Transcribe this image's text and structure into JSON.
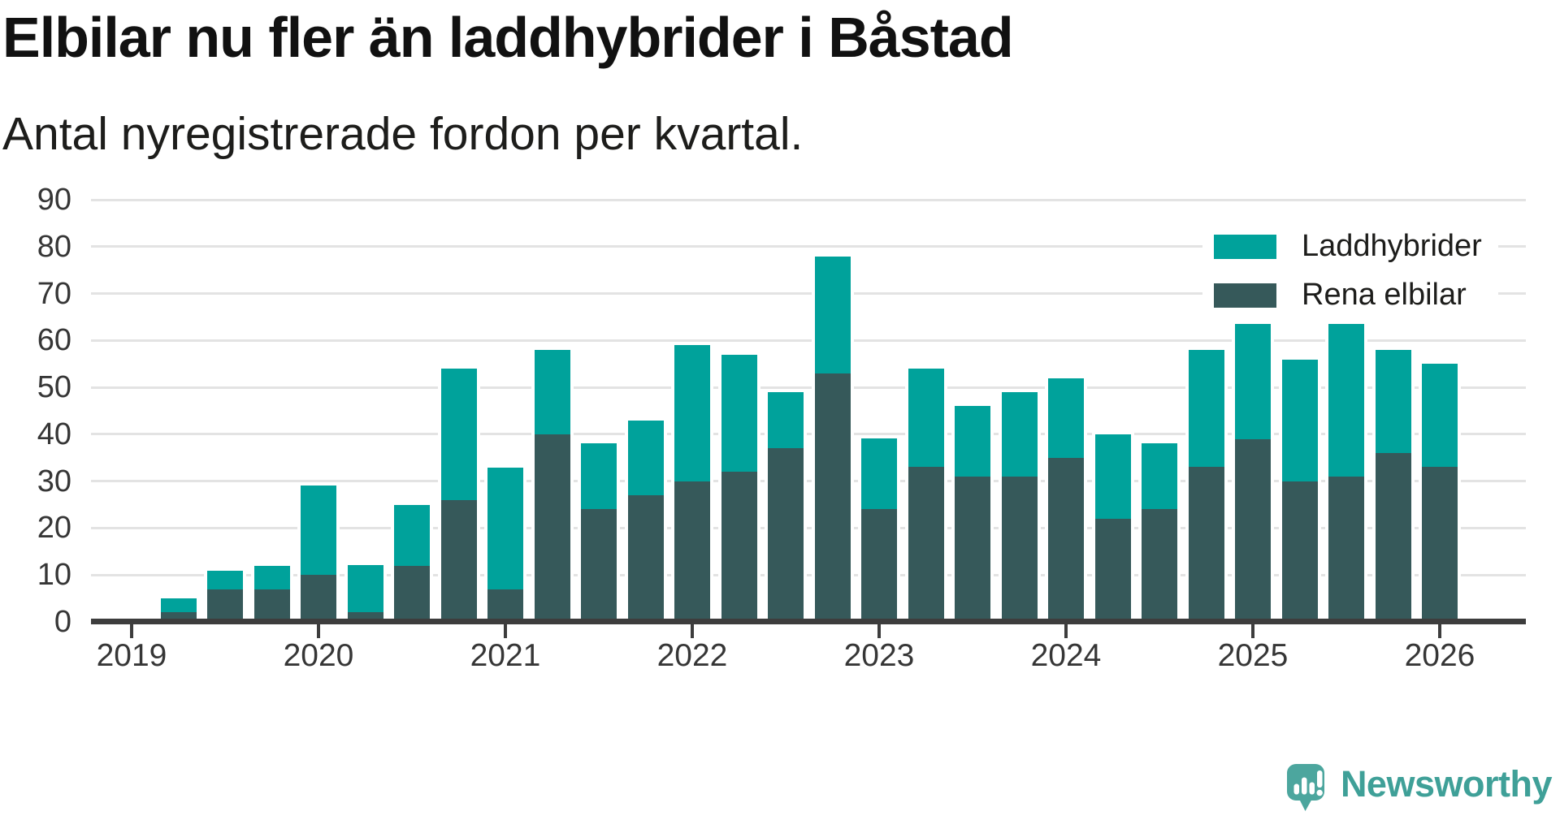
{
  "header": {
    "title": "Elbilar nu fler än laddhybrider i Båstad",
    "subtitle": "Antal nyregistrerade fordon per kvartal."
  },
  "legend": {
    "items": [
      {
        "label": "Laddhybrider",
        "color": "#00a29b"
      },
      {
        "label": "Rena elbilar",
        "color": "#36595a"
      }
    ]
  },
  "chart_data": {
    "type": "bar",
    "stacked": true,
    "title": "Elbilar nu fler än laddhybrider i Båstad",
    "subtitle": "Antal nyregistrerade fordon per kvartal.",
    "categories": [
      "2019 Q2",
      "2019 Q3",
      "2019 Q4",
      "2020 Q1",
      "2020 Q2",
      "2020 Q3",
      "2020 Q4",
      "2021 Q1",
      "2021 Q2",
      "2021 Q3",
      "2021 Q4",
      "2022 Q1",
      "2022 Q2",
      "2022 Q3",
      "2022 Q4",
      "2023 Q1",
      "2023 Q2",
      "2023 Q3",
      "2023 Q4",
      "2024 Q1",
      "2024 Q2",
      "2024 Q3",
      "2024 Q4",
      "2025 Q1",
      "2025 Q2",
      "2025 Q3",
      "2025 Q4",
      "2026 Q1"
    ],
    "series": [
      {
        "name": "Laddhybrider",
        "color": "#00a29b",
        "values": [
          3,
          4,
          5,
          19,
          10,
          13,
          28,
          26,
          18,
          14,
          16,
          29,
          25,
          12,
          25,
          15,
          21,
          15,
          18,
          17,
          18,
          14,
          25,
          25,
          26,
          33,
          22,
          22
        ]
      },
      {
        "name": "Rena elbilar",
        "color": "#36595a",
        "values": [
          2,
          7,
          7,
          10,
          2,
          12,
          26,
          7,
          40,
          24,
          27,
          30,
          32,
          37,
          53,
          24,
          33,
          31,
          31,
          35,
          22,
          24,
          33,
          39,
          30,
          31,
          36,
          33
        ]
      }
    ],
    "stack_bottom": "Rena elbilar",
    "totals": [
      5,
      11,
      12,
      29,
      12,
      25,
      54,
      33,
      58,
      38,
      43,
      59,
      57,
      49,
      78,
      39,
      54,
      46,
      49,
      52,
      40,
      38,
      58,
      64,
      56,
      64,
      58,
      55
    ],
    "xlabel": "",
    "ylabel": "",
    "ylim": [
      0,
      90
    ],
    "yticks": [
      0,
      10,
      20,
      30,
      40,
      50,
      60,
      70,
      80,
      90
    ],
    "xticks": [
      "2019",
      "2020",
      "2021",
      "2022",
      "2023",
      "2024",
      "2025",
      "2026"
    ],
    "grid": true,
    "legend_position": "top-right"
  },
  "branding": {
    "logo_text": "Newsworthy",
    "logo_color": "#4ca69e"
  }
}
